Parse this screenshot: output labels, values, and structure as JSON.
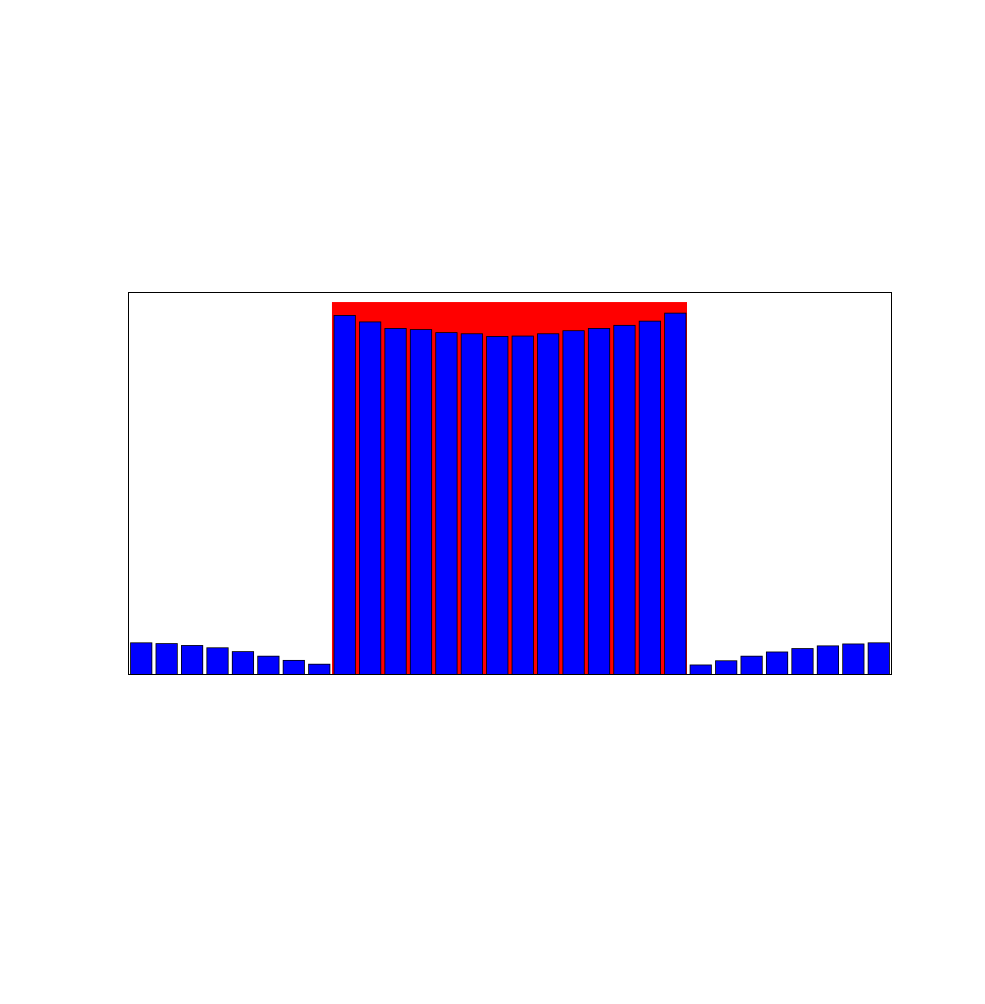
{
  "chart_data": {
    "type": "bar",
    "title": "",
    "xlabel": "",
    "ylabel": "",
    "ylim": [
      0,
      1.0
    ],
    "grid": false,
    "legend": "none",
    "colors": {
      "bars": "#0000ff",
      "bar_edge": "#000000",
      "window": "#ff0000",
      "frame": "#000000",
      "background": "#ffffff"
    },
    "series": [
      {
        "values": [
          0.083,
          0.081,
          0.076,
          0.07,
          0.06,
          0.048,
          0.037,
          0.027,
          0.94,
          0.923,
          0.906,
          0.903,
          0.895,
          0.892,
          0.885,
          0.886,
          0.892,
          0.9,
          0.906,
          0.914,
          0.925,
          0.946,
          0.025,
          0.036,
          0.048,
          0.059,
          0.068,
          0.075,
          0.08,
          0.083
        ]
      }
    ],
    "highlight_window": {
      "from_index": 8,
      "to_index": 21,
      "value": 0.975
    }
  }
}
